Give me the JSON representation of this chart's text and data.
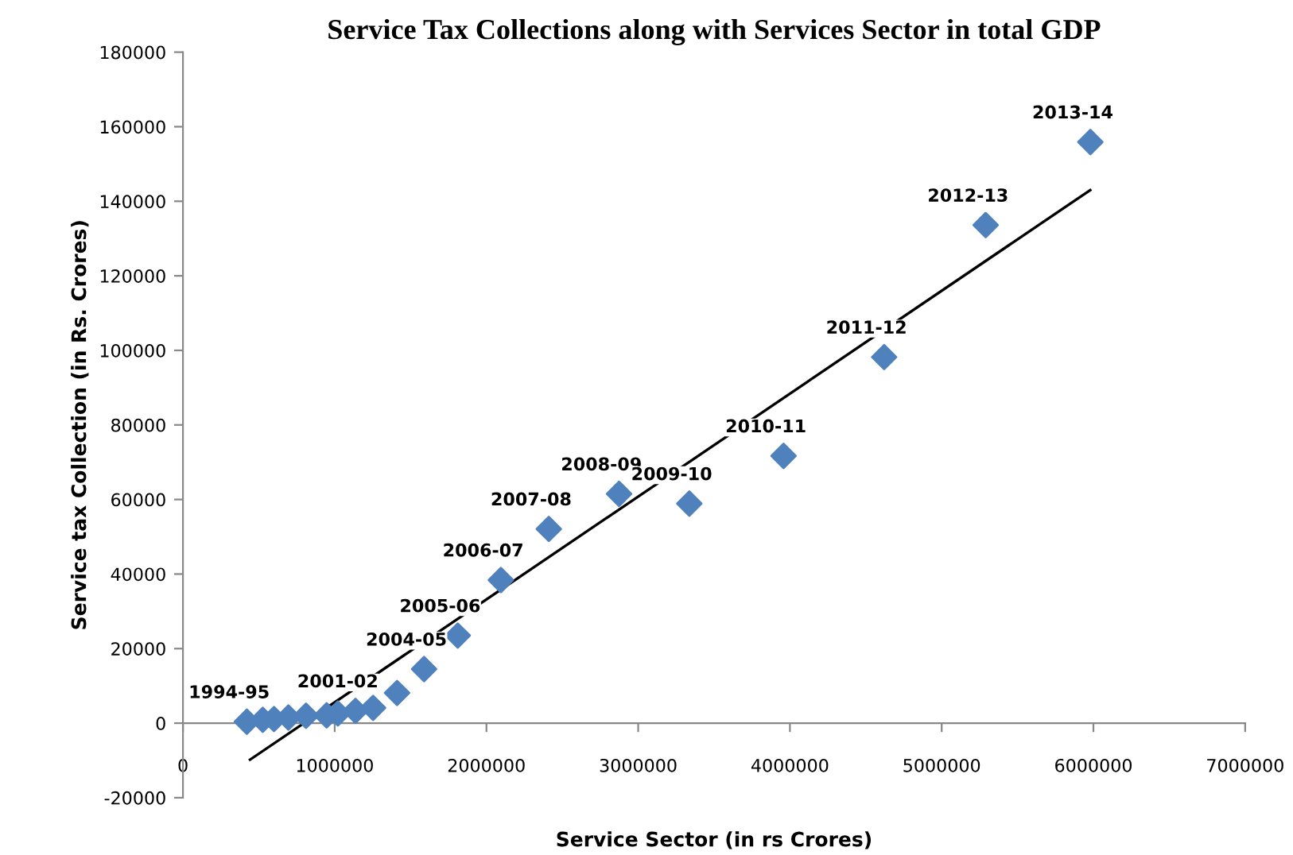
{
  "chart_data": {
    "type": "scatter",
    "title": "Service Tax Collections along with Services Sector in total GDP",
    "xlabel": "Service Sector (in rs Crores)",
    "ylabel": "Service tax Collection (in Rs. Crores)",
    "xlim": [
      0,
      7000000
    ],
    "ylim": [
      -20000,
      180000
    ],
    "xticks": [
      0,
      1000000,
      2000000,
      3000000,
      4000000,
      5000000,
      6000000,
      7000000
    ],
    "yticks": [
      -20000,
      0,
      20000,
      40000,
      60000,
      80000,
      100000,
      120000,
      140000,
      160000,
      180000
    ],
    "grid": false,
    "series": [
      {
        "color": "#4f81bd",
        "marker": "diamond",
        "x": [
          421000,
          526000,
          600000,
          695000,
          811000,
          947000,
          1021000,
          1137000,
          1253000,
          1411000,
          1589000,
          1811000,
          2095000,
          2411000,
          2874000,
          3337000,
          3958000,
          4621000,
          5290000,
          5980000
        ],
        "values": [
          400,
          900,
          1100,
          1500,
          2000,
          2100,
          2600,
          3300,
          4100,
          8100,
          14500,
          23500,
          38400,
          52100,
          61500,
          58900,
          71700,
          98200,
          133600,
          155900
        ],
        "value_labels": [
          "1994-95",
          null,
          null,
          null,
          null,
          null,
          null,
          "2001-02",
          null,
          null,
          "2004-05",
          "2005-06",
          "2006-07",
          "2007-08",
          "2008-09",
          "2009-10",
          "2010-11",
          "2011-12",
          "2012-13",
          "2013-14"
        ]
      },
      {
        "type": "line",
        "color": "#000000",
        "marker": "none",
        "line_style": "solid",
        "x": [
          442000,
          5979000
        ],
        "values": [
          -9800,
          143000
        ]
      }
    ]
  }
}
